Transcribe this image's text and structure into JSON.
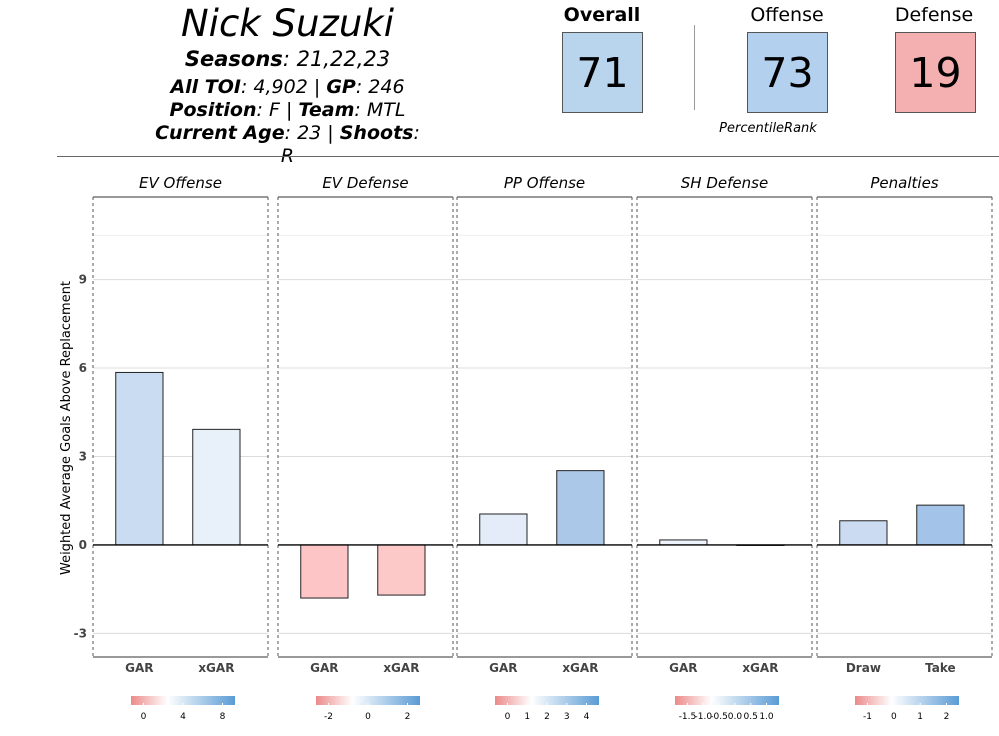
{
  "player": {
    "name": "Nick Suzuki",
    "seasons_label": "Seasons",
    "seasons": "21,22,23",
    "toi_label": "All TOI",
    "toi": "4,902",
    "gp_label": "GP",
    "gp": "246",
    "position_label": "Position",
    "position": "F",
    "team_label": "Team",
    "team": "MTL",
    "age_label": "Current Age",
    "age": "23",
    "shoots_label": "Shoots",
    "shoots": "R"
  },
  "ranks": {
    "overall_label": "Overall",
    "overall": "71",
    "offense_label": "Offense",
    "offense": "73",
    "defense_label": "Defense",
    "defense": "19",
    "caption": "PercentileRank",
    "colors": {
      "overall": "#b9d5ee",
      "offense": "#b3d1ee",
      "defense": "#f4b0b0"
    }
  },
  "chart_data": {
    "type": "bar",
    "ylabel": "Weighted Average Goals Above Replacement",
    "ylim": [
      -3.8,
      11.8
    ],
    "yticks": [
      -3,
      0,
      3,
      6,
      9
    ],
    "panels": [
      {
        "title": "EV Offense",
        "categories": [
          "GAR",
          "xGAR"
        ],
        "values": [
          5.85,
          3.92
        ],
        "colors": [
          "#c9dcf1",
          "#e8f0fa"
        ],
        "legend_ticks": [
          "0",
          "4",
          "8"
        ]
      },
      {
        "title": "EV Defense",
        "categories": [
          "GAR",
          "xGAR"
        ],
        "values": [
          -1.8,
          -1.7
        ],
        "colors": [
          "#fdc5c5",
          "#fdc8c8"
        ],
        "legend_ticks": [
          "-2",
          "0",
          "2"
        ]
      },
      {
        "title": "PP Offense",
        "categories": [
          "GAR",
          "xGAR"
        ],
        "values": [
          1.05,
          2.52
        ],
        "colors": [
          "#e3ecf8",
          "#abc8e9"
        ],
        "legend_ticks": [
          "0",
          "1",
          "2",
          "3",
          "4"
        ]
      },
      {
        "title": "SH Defense",
        "categories": [
          "GAR",
          "xGAR"
        ],
        "values": [
          0.17,
          0.0
        ],
        "colors": [
          "#edf2fb",
          "#f4f7fc"
        ],
        "legend_ticks": [
          "-1.5",
          "-1.0",
          "-0.5",
          "0.0",
          "0.5",
          "1.0"
        ]
      },
      {
        "title": "Penalties",
        "categories": [
          "Draw",
          "Take"
        ],
        "values": [
          0.82,
          1.35
        ],
        "colors": [
          "#cbdcf2",
          "#a3c4e8"
        ],
        "legend_ticks": [
          "-1",
          "0",
          "1",
          "2"
        ]
      }
    ]
  }
}
